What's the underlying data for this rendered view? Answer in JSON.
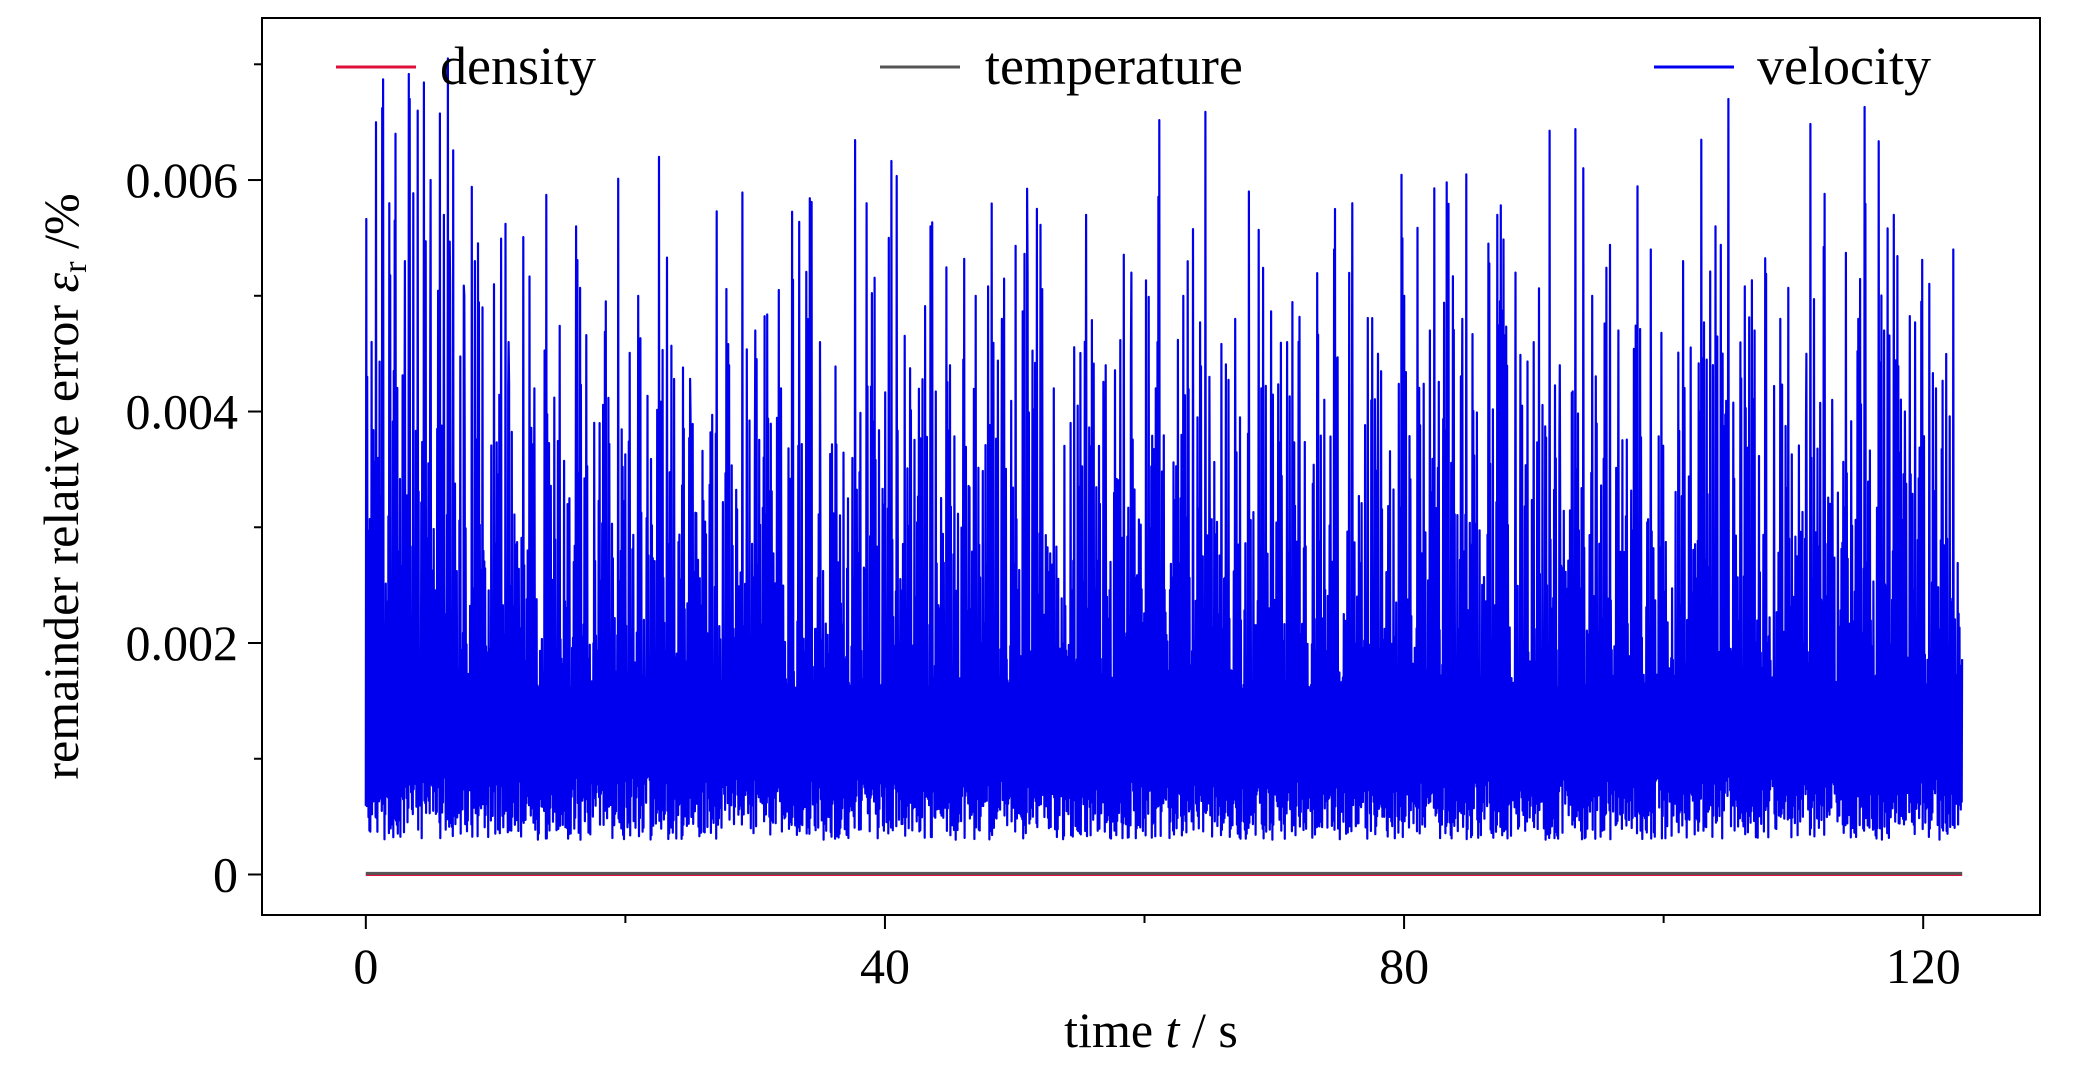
{
  "chart_data": {
    "type": "line",
    "xlabel": {
      "prefix": "time ",
      "var": "t",
      "suffix": " / s"
    },
    "ylabel": {
      "prefix": "remainder relative error ",
      "symbol": "ε",
      "subscript": "r",
      "suffix": " /%"
    },
    "xlim": [
      -8,
      129
    ],
    "ylim": [
      -0.00035,
      0.0074
    ],
    "xticks": [
      0,
      40,
      80,
      120
    ],
    "xtick_labels": [
      "0",
      "40",
      "80",
      "120"
    ],
    "xminor": [
      20,
      60,
      100
    ],
    "yticks": [
      0,
      0.002,
      0.004,
      0.006
    ],
    "ytick_labels": [
      "0",
      "0.002",
      "0.004",
      "0.006"
    ],
    "yminor": [
      0.001,
      0.003,
      0.005,
      0.007
    ],
    "grid": false,
    "legend_placement": "top",
    "series": [
      {
        "name": "density",
        "color": "#e0103c",
        "x_range": [
          0,
          123
        ],
        "baseline": 0.0,
        "peaks": []
      },
      {
        "name": "temperature",
        "color": "#555555",
        "x_range": [
          0,
          123
        ],
        "baseline": 1e-05,
        "peaks": []
      },
      {
        "name": "velocity",
        "color": "#0000ee",
        "x_range": [
          0,
          123
        ],
        "baseline": 0.0012,
        "lower_bound": 0.0003,
        "peaks": [
          [
            0.1,
            0.0043
          ],
          [
            0.8,
            0.0065
          ],
          [
            1.8,
            0.0058
          ],
          [
            2.3,
            0.0064
          ],
          [
            3.0,
            0.0053
          ],
          [
            3.4,
            0.0067
          ],
          [
            4.0,
            0.0066
          ],
          [
            5.0,
            0.006
          ],
          [
            6.0,
            0.0057
          ],
          [
            6.5,
            0.0051
          ],
          [
            7.6,
            0.005
          ],
          [
            8.4,
            0.0053
          ],
          [
            9.0,
            0.0049
          ],
          [
            11.0,
            0.0046
          ],
          [
            13.0,
            0.0042
          ],
          [
            16.2,
            0.0056
          ],
          [
            18.0,
            0.0039
          ],
          [
            21.0,
            0.005
          ],
          [
            22.6,
            0.0062
          ],
          [
            25.0,
            0.004
          ],
          [
            28.0,
            0.0044
          ],
          [
            30.0,
            0.0047
          ],
          [
            32.0,
            0.0042
          ],
          [
            35.0,
            0.0046
          ],
          [
            38.6,
            0.0058
          ],
          [
            40.3,
            0.0055
          ],
          [
            43.5,
            0.0056
          ],
          [
            45.0,
            0.0044
          ],
          [
            47.0,
            0.005
          ],
          [
            49.0,
            0.0048
          ],
          [
            51.0,
            0.0052
          ],
          [
            53.0,
            0.0042
          ],
          [
            55.5,
            0.0057
          ],
          [
            57.0,
            0.0044
          ],
          [
            59.0,
            0.0052
          ],
          [
            61.0,
            0.0046
          ],
          [
            63.0,
            0.005
          ],
          [
            65.0,
            0.0043
          ],
          [
            67.0,
            0.0048
          ],
          [
            69.0,
            0.0042
          ],
          [
            71.0,
            0.0046
          ],
          [
            74.6,
            0.0054
          ],
          [
            76.0,
            0.0058
          ],
          [
            78.0,
            0.0045
          ],
          [
            80.0,
            0.005
          ],
          [
            82.0,
            0.0047
          ],
          [
            84.5,
            0.0048
          ],
          [
            87.2,
            0.0057
          ],
          [
            88.6,
            0.0052
          ],
          [
            90.0,
            0.0046
          ],
          [
            92.0,
            0.0044
          ],
          [
            94.5,
            0.005
          ],
          [
            96.5,
            0.0047
          ],
          [
            99.0,
            0.0054
          ],
          [
            101.5,
            0.0053
          ],
          [
            104.0,
            0.0056
          ],
          [
            105.0,
            0.0067
          ],
          [
            107.0,
            0.0047
          ],
          [
            109.0,
            0.0048
          ],
          [
            111.0,
            0.0045
          ],
          [
            113.0,
            0.0041
          ],
          [
            115.0,
            0.0048
          ],
          [
            117.0,
            0.0047
          ],
          [
            118.6,
            0.004
          ],
          [
            121.0,
            0.0042
          ],
          [
            122.3,
            0.0054
          ]
        ]
      }
    ]
  }
}
